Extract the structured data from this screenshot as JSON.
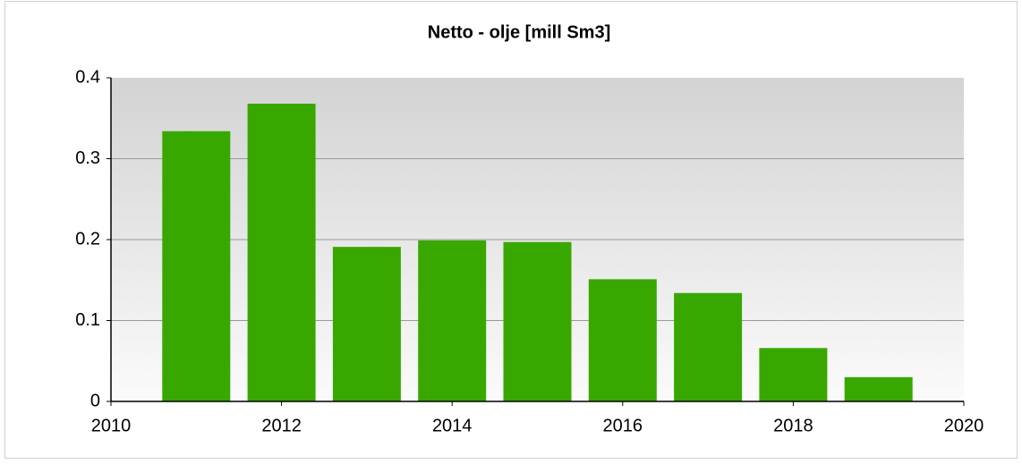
{
  "chart_data": {
    "type": "bar",
    "title": "Netto - olje [mill Sm3]",
    "x": [
      2011,
      2012,
      2013,
      2014,
      2015,
      2016,
      2017,
      2018,
      2019
    ],
    "values": [
      0.334,
      0.368,
      0.191,
      0.199,
      0.197,
      0.151,
      0.134,
      0.066,
      0.03
    ],
    "color": "#38a800",
    "xlim": [
      2010,
      2020
    ],
    "xticks": [
      2010,
      2012,
      2014,
      2016,
      2018,
      2020
    ],
    "ylim": [
      0,
      0.4
    ],
    "yticks": [
      0,
      0.1,
      0.2,
      0.3,
      0.4
    ],
    "grid": true
  }
}
